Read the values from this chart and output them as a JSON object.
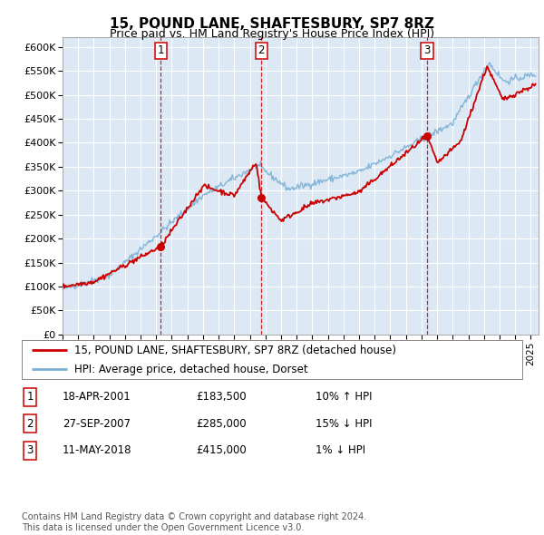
{
  "title": "15, POUND LANE, SHAFTESBURY, SP7 8RZ",
  "subtitle": "Price paid vs. HM Land Registry's House Price Index (HPI)",
  "plot_bg_color": "#dce9f5",
  "hpi_color": "#7bafd4",
  "price_color": "#cc0000",
  "vline_color": "#cc0000",
  "ylim": [
    0,
    620000
  ],
  "yticks": [
    0,
    50000,
    100000,
    150000,
    200000,
    250000,
    300000,
    350000,
    400000,
    450000,
    500000,
    550000,
    600000
  ],
  "ytick_labels": [
    "£0",
    "£50K",
    "£100K",
    "£150K",
    "£200K",
    "£250K",
    "£300K",
    "£350K",
    "£400K",
    "£450K",
    "£500K",
    "£550K",
    "£600K"
  ],
  "xmin": 1995.0,
  "xmax": 2025.5,
  "sales": [
    {
      "date_num": 2001.29,
      "price": 183500,
      "label": "1"
    },
    {
      "date_num": 2007.74,
      "price": 285000,
      "label": "2"
    },
    {
      "date_num": 2018.36,
      "price": 415000,
      "label": "3"
    }
  ],
  "legend_entries": [
    {
      "label": "15, POUND LANE, SHAFTESBURY, SP7 8RZ (detached house)",
      "color": "#cc0000"
    },
    {
      "label": "HPI: Average price, detached house, Dorset",
      "color": "#7bafd4"
    }
  ],
  "table_rows": [
    {
      "num": "1",
      "date": "18-APR-2001",
      "price": "£183,500",
      "change": "10% ↑ HPI"
    },
    {
      "num": "2",
      "date": "27-SEP-2007",
      "price": "£285,000",
      "change": "15% ↓ HPI"
    },
    {
      "num": "3",
      "date": "11-MAY-2018",
      "price": "£415,000",
      "change": "1% ↓ HPI"
    }
  ],
  "footer": "Contains HM Land Registry data © Crown copyright and database right 2024.\nThis data is licensed under the Open Government Licence v3.0."
}
